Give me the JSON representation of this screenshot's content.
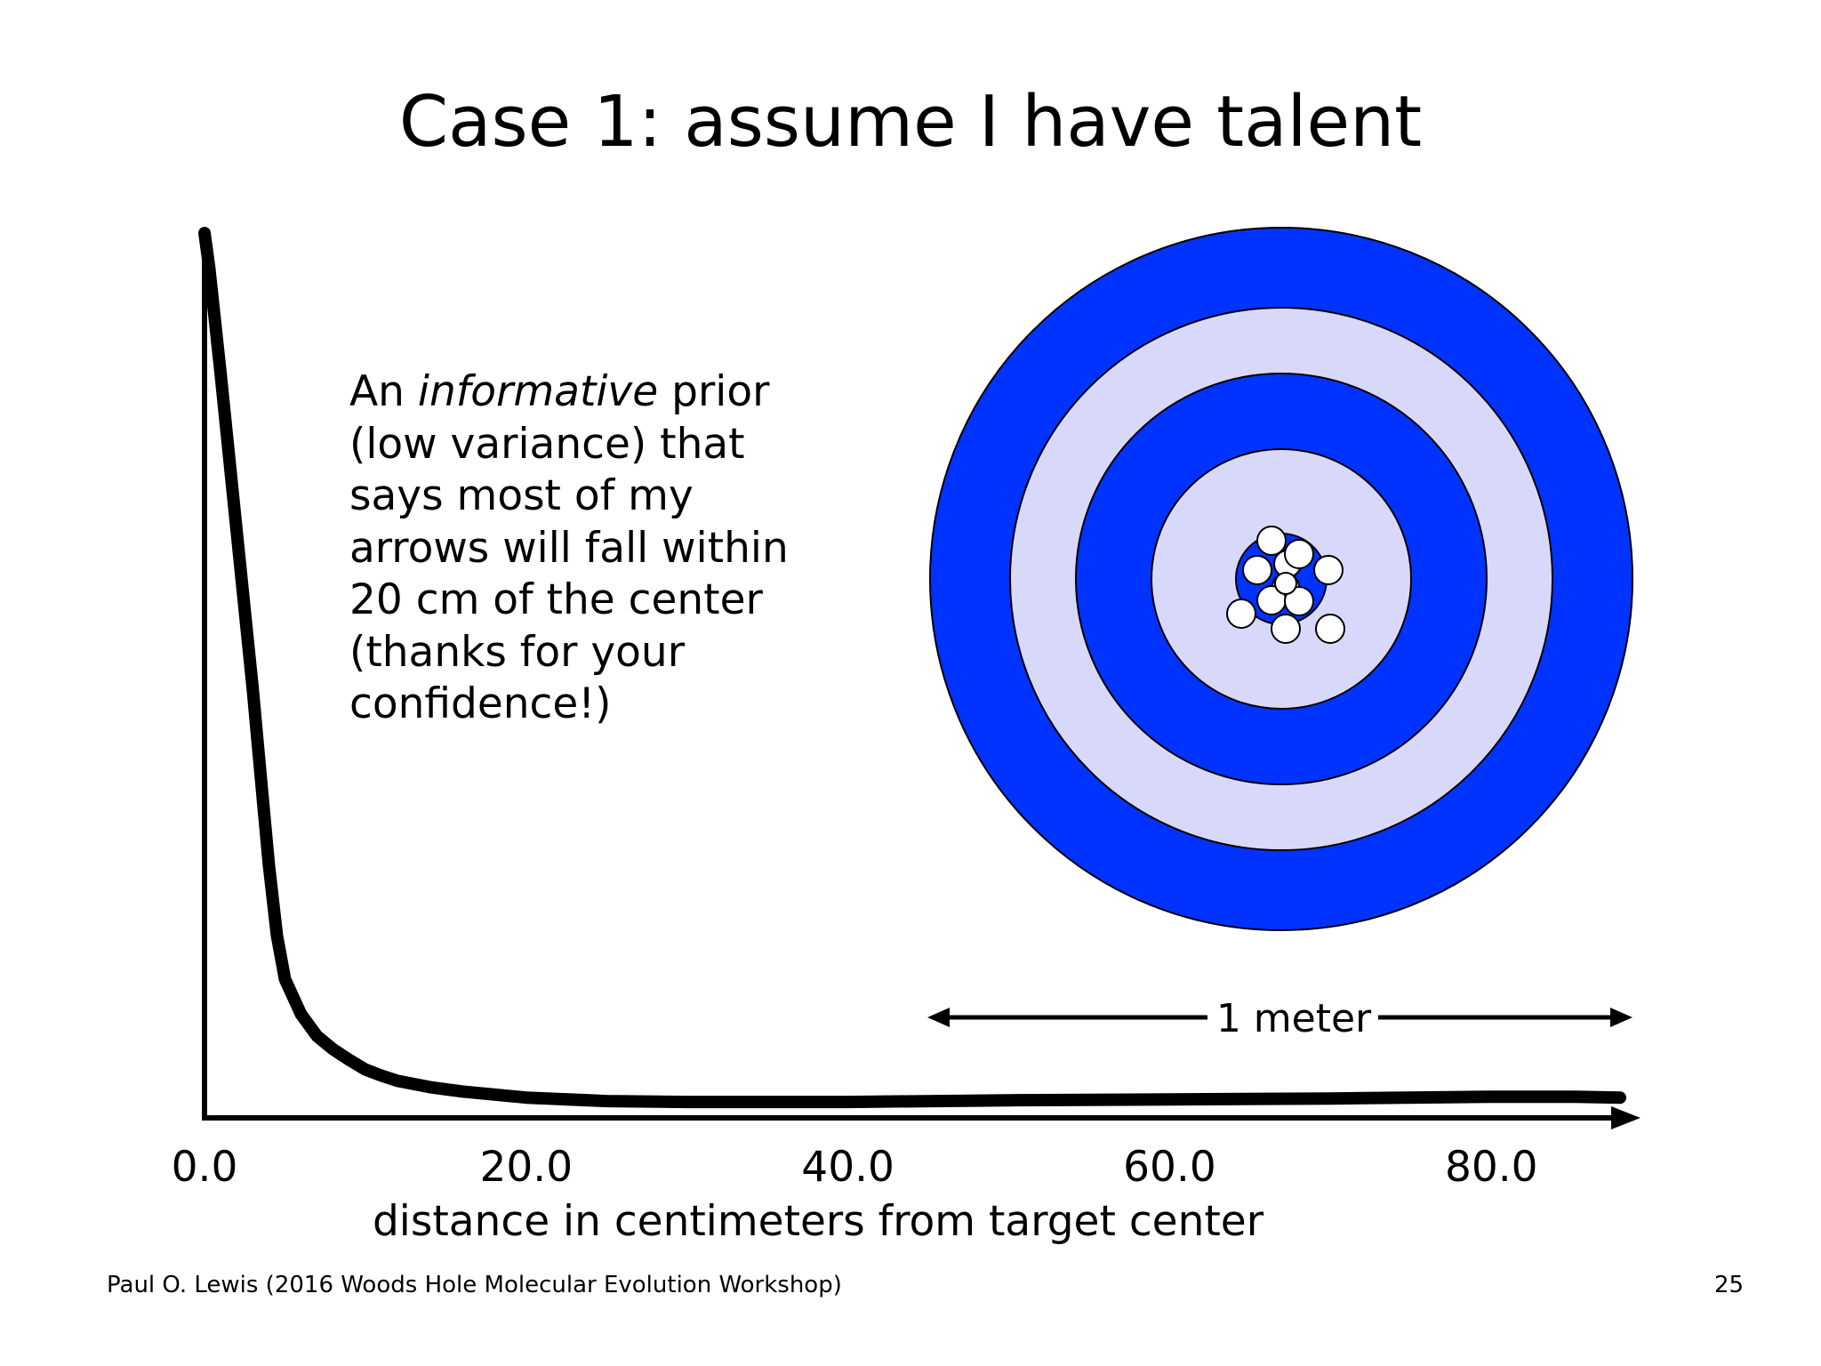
{
  "slide": {
    "title": "Case 1: assume I have talent",
    "note": {
      "line1_before": "An ",
      "line1_italic": "informative",
      "line1_after": " prior",
      "line2": "(low variance) that",
      "line3": "says most of my",
      "line4": "arrows will fall within",
      "line5": "20 cm of the center",
      "line6": "(thanks for your",
      "line7": "confidence!)"
    },
    "footer": "Paul O. Lewis (2016 Woods Hole Molecular Evolution Workshop)",
    "page_number": "25"
  },
  "chart_data": {
    "type": "line",
    "title": "",
    "xlabel": "distance in centimeters from target center",
    "ylabel": "",
    "xlim": [
      0,
      88
    ],
    "ylim": [
      0,
      1
    ],
    "grid": false,
    "x_ticks": [
      "0.0",
      "20.0",
      "40.0",
      "60.0",
      "80.0"
    ],
    "x_tick_values": [
      0,
      20,
      40,
      60,
      80
    ],
    "series": [
      {
        "x": [
          0,
          0.3,
          1,
          2,
          3,
          3.5,
          4,
          4.5,
          5,
          6,
          7,
          8,
          9,
          10,
          11,
          12,
          14,
          16,
          20,
          25,
          30,
          40,
          50,
          60,
          70,
          80,
          85,
          88
        ],
        "y": [
          1.0,
          0.96,
          0.84,
          0.66,
          0.48,
          0.38,
          0.28,
          0.2,
          0.15,
          0.11,
          0.085,
          0.07,
          0.058,
          0.047,
          0.04,
          0.034,
          0.027,
          0.022,
          0.015,
          0.011,
          0.01,
          0.01,
          0.012,
          0.013,
          0.014,
          0.016,
          0.016,
          0.015
        ]
      }
    ],
    "color": "#000000"
  },
  "target": {
    "ring_colors": [
      "#0033ff",
      "#d8d8fa",
      "#0033ff",
      "#d8d8fa",
      "#0033ff"
    ],
    "arrow_color": "#ffffff",
    "scale_label": "1 meter",
    "arrow_hits_count": 12
  }
}
